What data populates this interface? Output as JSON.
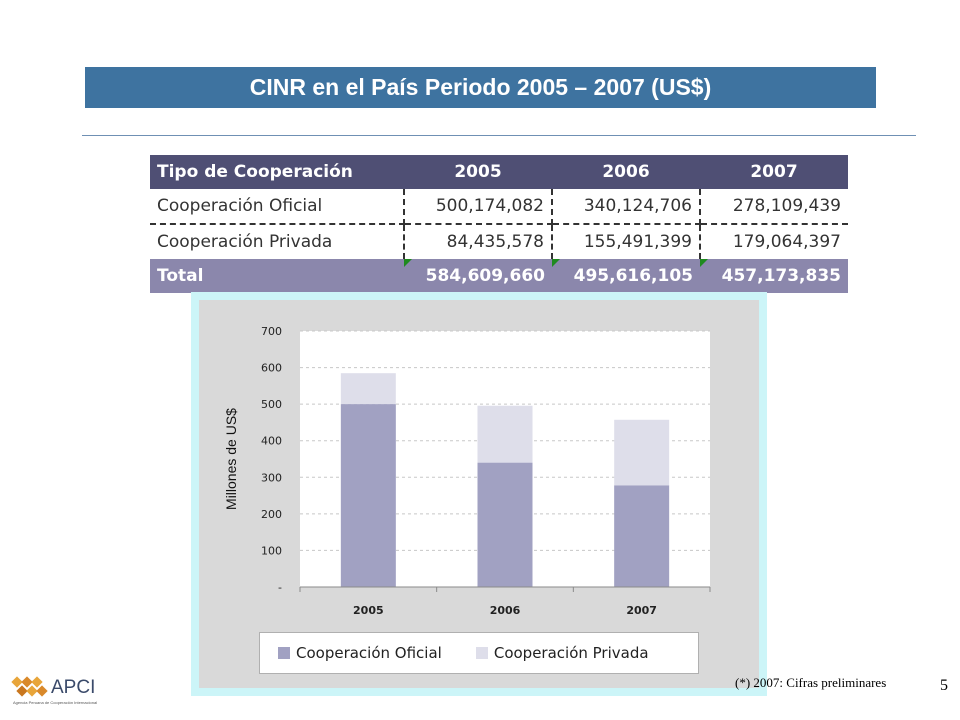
{
  "title": "CINR en el País Periodo 2005 – 2007 (US$)",
  "table": {
    "headers": [
      "Tipo de Cooperación",
      "2005",
      "2006",
      "2007"
    ],
    "rows": [
      {
        "label": "Cooperación Oficial",
        "values": [
          "500,174,082",
          "340,124,706",
          "278,109,439"
        ]
      },
      {
        "label": "Cooperación Privada",
        "values": [
          "84,435,578",
          "155,491,399",
          "179,064,397"
        ]
      }
    ],
    "total": {
      "label": "Total",
      "values": [
        "584,609,660",
        "495,616,105",
        "457,173,835"
      ]
    }
  },
  "chart_data": {
    "type": "bar",
    "stacked": true,
    "categories": [
      "2005",
      "2006",
      "2007"
    ],
    "series": [
      {
        "name": "Cooperación Oficial",
        "values": [
          500.174082,
          340.124706,
          278.109439
        ],
        "color": "#a1a1c2"
      },
      {
        "name": "Cooperación Privada",
        "values": [
          84.435578,
          155.491399,
          179.064397
        ],
        "color": "#dedeea"
      }
    ],
    "ylabel": "Millones de US$",
    "ylim": [
      0,
      700
    ],
    "yticks": [
      0,
      100,
      200,
      300,
      400,
      500,
      600,
      700
    ],
    "ytick_labels": [
      "-",
      "100",
      "200",
      "300",
      "400",
      "500",
      "600",
      "700"
    ],
    "grid": true,
    "legend": "bottom"
  },
  "footnote": "(*) 2007: Cifras preliminares",
  "page_number": "5",
  "logo": {
    "name": "APCI",
    "subtitle": "Agencia Peruana de Cooperación Internacional"
  }
}
